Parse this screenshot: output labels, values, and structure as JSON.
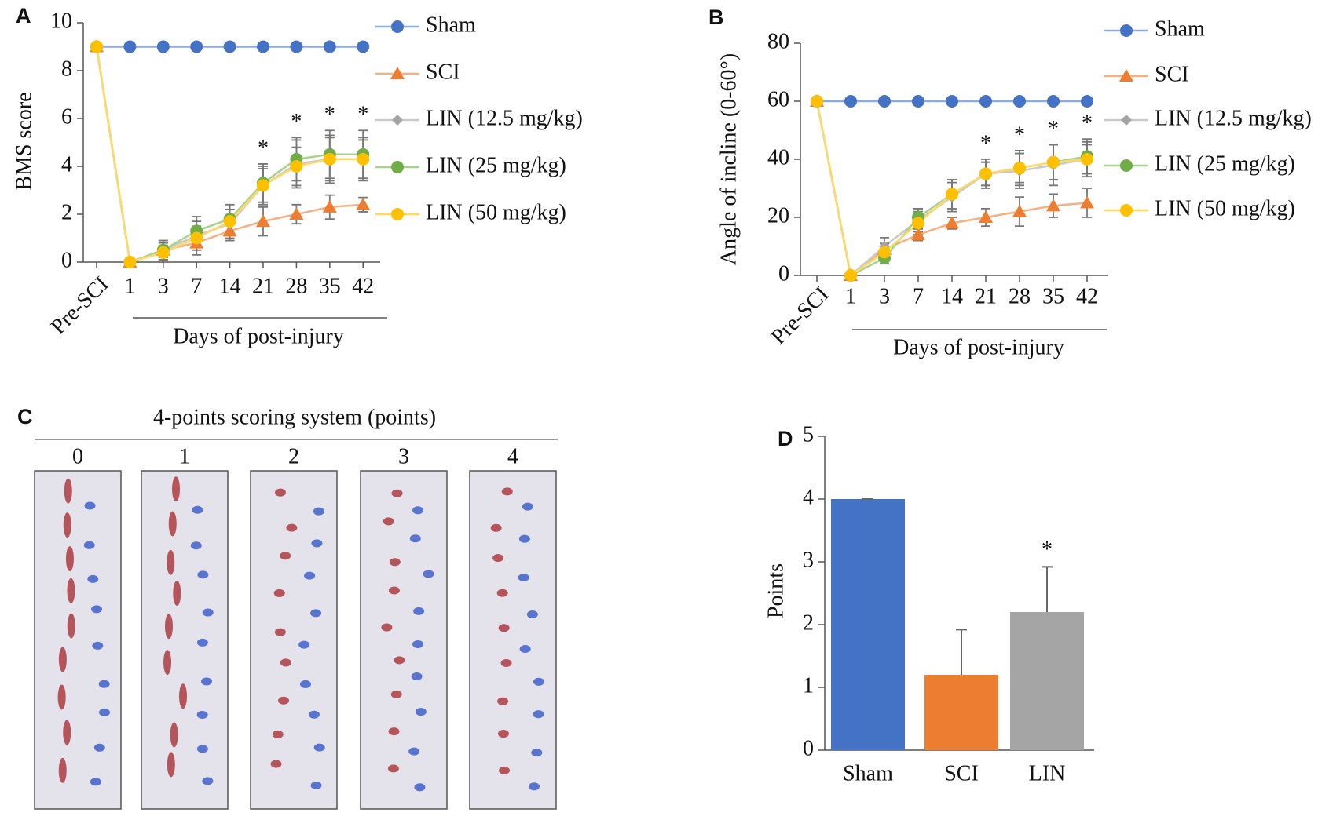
{
  "chart_data": [
    {
      "type": "line",
      "panel": "A",
      "ylabel": "BMS score",
      "xlabel": "Days of post-injury",
      "categories": [
        "Pre-SCI",
        "1",
        "3",
        "7",
        "14",
        "21",
        "28",
        "35",
        "42"
      ],
      "ylim": [
        0,
        10
      ],
      "yticks": [
        0,
        2,
        4,
        6,
        8,
        10
      ],
      "significance": [
        null,
        null,
        null,
        null,
        null,
        "*",
        "*",
        "*",
        "*"
      ],
      "series": [
        {
          "name": "Sham",
          "color": "#4472c4",
          "line_color": "#8faadc",
          "marker": "circle",
          "values": [
            9,
            9,
            9,
            9,
            9,
            9,
            9,
            9,
            9
          ],
          "errors": [
            0,
            0,
            0,
            0,
            0,
            0,
            0,
            0,
            0
          ]
        },
        {
          "name": "SCI",
          "color": "#ed7d31",
          "line_color": "#f4b183",
          "marker": "triangle",
          "values": [
            9,
            0,
            0.5,
            0.8,
            1.3,
            1.7,
            2.0,
            2.3,
            2.4
          ],
          "errors": [
            0,
            0,
            0.3,
            0.5,
            0.4,
            0.6,
            0.4,
            0.5,
            0.3
          ]
        },
        {
          "name": "LIN (12.5 mg/kg)",
          "color": "#a5a5a5",
          "line_color": "#c9c9c9",
          "marker": "diamond",
          "values": [
            9,
            0,
            0.5,
            1.1,
            1.6,
            3.2,
            4.1,
            4.3,
            4.3
          ],
          "errors": [
            0,
            0,
            0.3,
            0.6,
            0.6,
            0.8,
            1.0,
            1.0,
            0.9
          ]
        },
        {
          "name": "LIN (25 mg/kg)",
          "color": "#70ad47",
          "line_color": "#a9d18e",
          "marker": "circle",
          "values": [
            9,
            0,
            0.5,
            1.3,
            1.8,
            3.3,
            4.3,
            4.5,
            4.5
          ],
          "errors": [
            0,
            0,
            0.4,
            0.6,
            0.6,
            0.8,
            0.9,
            1.0,
            1.0
          ]
        },
        {
          "name": "LIN (50 mg/kg)",
          "color": "#ffc000",
          "line_color": "#ffd966",
          "marker": "circle",
          "values": [
            9,
            0,
            0.4,
            1.0,
            1.7,
            3.2,
            4.0,
            4.3,
            4.3
          ],
          "errors": [
            0,
            0,
            0.3,
            0.5,
            0.5,
            0.7,
            0.8,
            0.9,
            0.8
          ]
        }
      ]
    },
    {
      "type": "line",
      "panel": "B",
      "ylabel": "Angle of incline (0-60°)",
      "xlabel": "Days of post-injury",
      "categories": [
        "Pre-SCI",
        "1",
        "3",
        "7",
        "14",
        "21",
        "28",
        "35",
        "42"
      ],
      "ylim": [
        0,
        80
      ],
      "yticks": [
        0,
        20,
        40,
        60,
        80
      ],
      "significance": [
        null,
        null,
        null,
        null,
        null,
        "*",
        "*",
        "*",
        "*"
      ],
      "series": [
        {
          "name": "Sham",
          "color": "#4472c4",
          "line_color": "#8faadc",
          "marker": "circle",
          "values": [
            60,
            60,
            60,
            60,
            60,
            60,
            60,
            60,
            60
          ],
          "errors": [
            0,
            0,
            0,
            0,
            0,
            0,
            0,
            0,
            0
          ]
        },
        {
          "name": "SCI",
          "color": "#ed7d31",
          "line_color": "#f4b183",
          "marker": "triangle",
          "values": [
            60,
            0,
            9,
            14,
            18,
            20,
            22,
            24,
            25
          ],
          "errors": [
            0,
            0,
            2,
            2,
            2,
            3,
            5,
            4,
            5
          ]
        },
        {
          "name": "LIN (12.5 mg/kg)",
          "color": "#a5a5a5",
          "line_color": "#c9c9c9",
          "marker": "diamond",
          "values": [
            60,
            0,
            10,
            19,
            27,
            35,
            36,
            38,
            40
          ],
          "errors": [
            0,
            0,
            3,
            4,
            5,
            4,
            6,
            7,
            6
          ]
        },
        {
          "name": "LIN (25 mg/kg)",
          "color": "#70ad47",
          "line_color": "#a9d18e",
          "marker": "circle",
          "values": [
            60,
            0,
            6,
            20,
            28,
            35,
            37,
            39,
            41
          ],
          "errors": [
            0,
            0,
            2,
            3,
            5,
            5,
            6,
            6,
            6
          ]
        },
        {
          "name": "LIN (50 mg/kg)",
          "color": "#ffc000",
          "line_color": "#ffd966",
          "marker": "circle",
          "values": [
            60,
            0,
            8,
            18,
            28,
            35,
            37,
            39,
            40
          ],
          "errors": [
            0,
            0,
            3,
            4,
            5,
            4,
            5,
            6,
            5
          ]
        }
      ]
    },
    {
      "type": "image",
      "panel": "C",
      "title": "4-points scoring system (points)",
      "categories": [
        "0",
        "1",
        "2",
        "3",
        "4"
      ]
    },
    {
      "type": "bar",
      "panel": "D",
      "ylabel": "Points",
      "categories": [
        "Sham",
        "SCI",
        "LIN"
      ],
      "values": [
        4,
        1.2,
        2.2
      ],
      "errors": [
        0,
        0.72,
        0.72
      ],
      "colors": [
        "#4472c4",
        "#ed7d31",
        "#a5a5a5"
      ],
      "significance": [
        null,
        null,
        "*"
      ],
      "ylim": [
        0,
        5
      ],
      "yticks": [
        0,
        1,
        2,
        3,
        4,
        5
      ]
    }
  ]
}
